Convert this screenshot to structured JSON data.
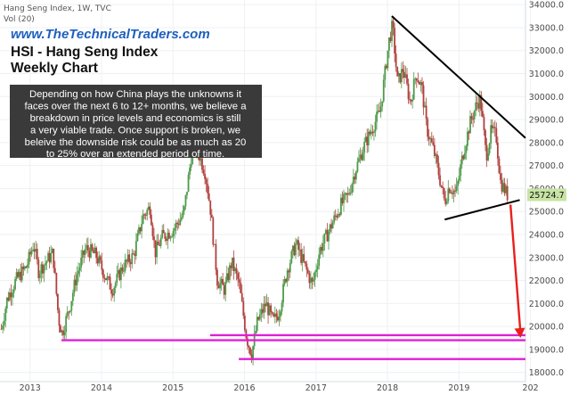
{
  "header": {
    "symbol_line": "Hang Seng Index, 1W, TVC",
    "volume_label": "Vol (20)"
  },
  "watermark": "www.TheTechnicalTraders.com",
  "title_lines": [
    "HSI - Hang Seng Index",
    "Weekly Chart"
  ],
  "annotation_lines": [
    "Depending on how China plays the unknowns it",
    "faces over the next 6 to 12+ months, we believe a",
    "breakdown in price levels and economics is still",
    "a very viable trade.  Once support is broken, we",
    "beleive the downside risk could be as much as 20",
    "to 25% over an extended period of time."
  ],
  "chart_data": {
    "type": "candlestick",
    "title": "HSI - Hang Seng Index Weekly Chart",
    "x_ticks": [
      "2013",
      "2014",
      "2015",
      "2016",
      "2017",
      "2018",
      "2019",
      "202"
    ],
    "y_ticks": [
      "18000.0",
      "19000.0",
      "20000.0",
      "21000.0",
      "22000.0",
      "23000.0",
      "24000.0",
      "25000.0",
      "26000.0",
      "27000.0",
      "28000.0",
      "29000.0",
      "30000.0",
      "31000.0",
      "32000.0",
      "33000.0",
      "34000.0"
    ],
    "ylim": [
      17600,
      34200
    ],
    "xlim": [
      2012.58,
      2019.93
    ],
    "last_price_label": "25724.7",
    "last_price": 25724.7,
    "colors": {
      "up": "#4f9a4a",
      "down": "#b0413e",
      "support": "#e020d6",
      "trend": "#000000",
      "arrow": "#e8201c",
      "price_tag": "#c7e4a4"
    },
    "series": [
      {
        "name": "",
        "anchors": [
          [
            2012.6,
            19900
          ],
          [
            2012.68,
            21200
          ],
          [
            2012.8,
            22000
          ],
          [
            2012.95,
            22600
          ],
          [
            2013.05,
            23600
          ],
          [
            2013.12,
            22400
          ],
          [
            2013.22,
            22800
          ],
          [
            2013.32,
            23200
          ],
          [
            2013.4,
            20300
          ],
          [
            2013.45,
            19700
          ],
          [
            2013.55,
            20800
          ],
          [
            2013.65,
            22200
          ],
          [
            2013.78,
            23400
          ],
          [
            2013.92,
            23100
          ],
          [
            2014.05,
            22200
          ],
          [
            2014.15,
            21600
          ],
          [
            2014.3,
            22600
          ],
          [
            2014.45,
            23100
          ],
          [
            2014.58,
            24800
          ],
          [
            2014.68,
            25200
          ],
          [
            2014.75,
            23200
          ],
          [
            2014.85,
            23900
          ],
          [
            2015.0,
            24200
          ],
          [
            2015.15,
            24900
          ],
          [
            2015.28,
            28000
          ],
          [
            2015.35,
            27600
          ],
          [
            2015.45,
            26700
          ],
          [
            2015.52,
            25200
          ],
          [
            2015.62,
            22000
          ],
          [
            2015.72,
            21600
          ],
          [
            2015.82,
            22800
          ],
          [
            2015.92,
            21900
          ],
          [
            2016.03,
            19500
          ],
          [
            2016.1,
            18800
          ],
          [
            2016.18,
            20200
          ],
          [
            2016.3,
            21000
          ],
          [
            2016.4,
            20200
          ],
          [
            2016.48,
            20600
          ],
          [
            2016.6,
            22500
          ],
          [
            2016.72,
            23600
          ],
          [
            2016.82,
            22800
          ],
          [
            2016.95,
            21800
          ],
          [
            2017.05,
            23300
          ],
          [
            2017.2,
            24300
          ],
          [
            2017.35,
            25300
          ],
          [
            2017.45,
            25700
          ],
          [
            2017.55,
            26800
          ],
          [
            2017.68,
            27900
          ],
          [
            2017.8,
            28700
          ],
          [
            2017.9,
            29400
          ],
          [
            2018.02,
            32400
          ],
          [
            2018.07,
            33100
          ],
          [
            2018.14,
            30600
          ],
          [
            2018.22,
            31200
          ],
          [
            2018.32,
            29700
          ],
          [
            2018.4,
            31000
          ],
          [
            2018.48,
            30400
          ],
          [
            2018.55,
            28600
          ],
          [
            2018.65,
            27600
          ],
          [
            2018.72,
            26600
          ],
          [
            2018.8,
            25400
          ],
          [
            2018.86,
            26100
          ],
          [
            2018.96,
            25800
          ],
          [
            2019.05,
            27400
          ],
          [
            2019.15,
            28800
          ],
          [
            2019.25,
            29700
          ],
          [
            2019.3,
            29900
          ],
          [
            2019.38,
            27400
          ],
          [
            2019.45,
            28500
          ],
          [
            2019.52,
            28300
          ],
          [
            2019.58,
            26300
          ],
          [
            2019.63,
            26000
          ],
          [
            2019.68,
            25700
          ]
        ]
      }
    ],
    "support_lines": [
      {
        "y": 19400,
        "x": [
          2013.44,
          2019.93
        ]
      },
      {
        "y": 19620,
        "x": [
          2015.52,
          2019.93
        ]
      },
      {
        "y": 18580,
        "x": [
          2015.92,
          2019.93
        ]
      }
    ],
    "trend_lines": [
      {
        "from": [
          2018.06,
          33500
        ],
        "to": [
          2019.93,
          28200
        ]
      },
      {
        "from": [
          2018.8,
          24650
        ],
        "to": [
          2019.85,
          25500
        ]
      }
    ],
    "arrow": {
      "from": [
        2019.72,
        25300
      ],
      "to": [
        2019.86,
        19500
      ]
    }
  }
}
